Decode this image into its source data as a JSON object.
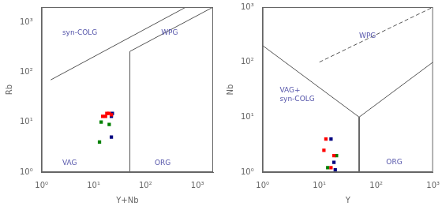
{
  "chart_data": [
    {
      "type": "scatter",
      "xlabel": "Y+Nb",
      "ylabel": "Rb",
      "xlim": [
        1,
        2000
      ],
      "ylim": [
        1,
        2000
      ],
      "xticks": [
        {
          "value": 1,
          "label": "10⁰"
        },
        {
          "value": 10,
          "label": "10¹"
        },
        {
          "value": 100,
          "label": "10²"
        },
        {
          "value": 1000,
          "label": "10³"
        }
      ],
      "yticks": [
        {
          "value": 1,
          "label": "10⁰"
        },
        {
          "value": 10,
          "label": "10¹"
        },
        {
          "value": 100,
          "label": "10²"
        },
        {
          "value": 1000,
          "label": "10³"
        }
      ],
      "log": true,
      "grid": false,
      "series": [
        {
          "color": "red",
          "marker": "square",
          "values": [
            [
              18,
              15
            ],
            [
              15,
              13
            ],
            [
              20,
              15
            ],
            [
              22,
              14
            ],
            [
              17,
              13
            ]
          ]
        },
        {
          "color": "navy",
          "marker": "square",
          "values": [
            [
              23,
              15
            ],
            [
              22,
              13
            ],
            [
              22,
              5
            ]
          ]
        },
        {
          "color": "green",
          "marker": "square",
          "values": [
            [
              14,
              10
            ],
            [
              20,
              9
            ],
            [
              13,
              4
            ]
          ]
        }
      ],
      "lines": [
        {
          "x": [
            1.5,
            600
          ],
          "y": [
            70,
            2000
          ],
          "line_style": "solid",
          "color": "#555555"
        },
        {
          "x": [
            50,
            50
          ],
          "y": [
            1,
            260
          ],
          "line_style": "solid",
          "color": "#555555"
        },
        {
          "x": [
            50,
            2000
          ],
          "y": [
            260,
            2000
          ],
          "line_style": "solid",
          "color": "#555555"
        }
      ],
      "annotations": [
        {
          "x": 2.5,
          "y": 600,
          "text": "syn-COLG",
          "color": "#5555aa"
        },
        {
          "x": 200,
          "y": 600,
          "text": "WPG",
          "color": "#5555aa"
        },
        {
          "x": 2.5,
          "y": 1.5,
          "text": "VAG",
          "color": "#5555aa"
        },
        {
          "x": 150,
          "y": 1.5,
          "text": "ORG",
          "color": "#5555aa"
        }
      ]
    },
    {
      "type": "scatter",
      "xlabel": "Y",
      "ylabel": "Nb",
      "xlim": [
        1,
        1000
      ],
      "ylim": [
        1,
        1000
      ],
      "xticks": [
        {
          "value": 1,
          "label": "10⁰"
        },
        {
          "value": 10,
          "label": "10¹"
        },
        {
          "value": 100,
          "label": "10²"
        },
        {
          "value": 1000,
          "label": "10³"
        }
      ],
      "yticks": [
        {
          "value": 1,
          "label": "10⁰"
        },
        {
          "value": 10,
          "label": "10¹"
        },
        {
          "value": 100,
          "label": "10²"
        },
        {
          "value": 1000,
          "label": "10³"
        }
      ],
      "log": true,
      "grid": false,
      "series": [
        {
          "color": "red",
          "marker": "square",
          "values": [
            [
              13,
              4
            ],
            [
              12,
              2.5
            ],
            [
              18,
              2
            ],
            [
              16,
              1.2
            ]
          ]
        },
        {
          "color": "navy",
          "marker": "square",
          "values": [
            [
              16,
              4
            ],
            [
              18,
              1.5
            ],
            [
              19,
              1.1
            ]
          ]
        },
        {
          "color": "green",
          "marker": "square",
          "values": [
            [
              20,
              2
            ],
            [
              14,
              1.2
            ]
          ]
        }
      ],
      "lines": [
        {
          "x": [
            1,
            50
          ],
          "y": [
            200,
            10
          ],
          "line_style": "solid",
          "color": "#555555"
        },
        {
          "x": [
            50,
            50
          ],
          "y": [
            10,
            1
          ],
          "line_style": "solid",
          "color": "#555555"
        },
        {
          "x": [
            50,
            1000
          ],
          "y": [
            10,
            100
          ],
          "line_style": "solid",
          "color": "#555555"
        },
        {
          "x": [
            10,
            1000
          ],
          "y": [
            100,
            1000
          ],
          "line_style": "dashed",
          "color": "#555555"
        }
      ],
      "annotations": [
        {
          "x": 50,
          "y": 300,
          "text": "WPG",
          "color": "#5555aa"
        },
        {
          "x": 2,
          "y": 25,
          "text": "VAG+\nsyn-COLG",
          "color": "#5555aa"
        },
        {
          "x": 150,
          "y": 1.5,
          "text": "ORG",
          "color": "#5555aa"
        }
      ]
    }
  ]
}
